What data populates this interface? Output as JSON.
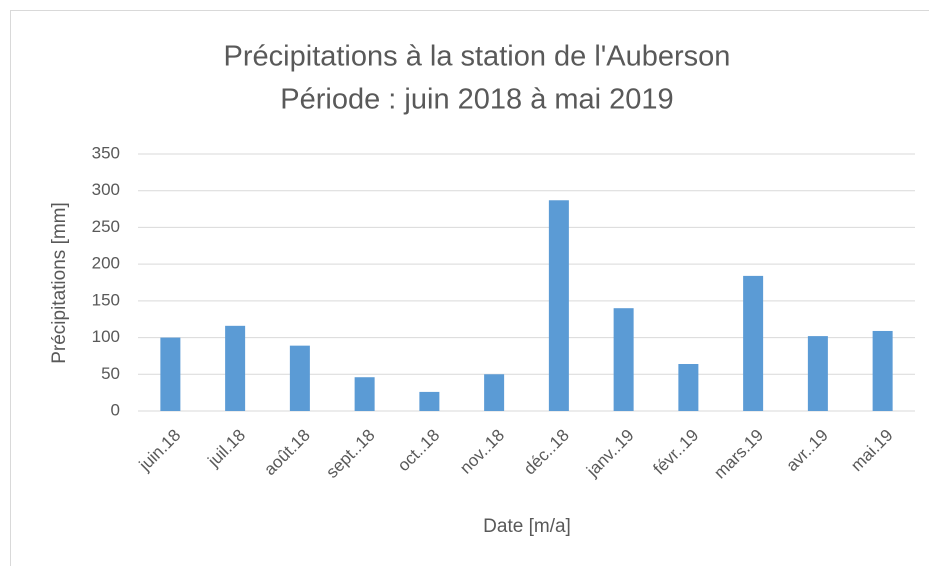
{
  "chart_data": {
    "type": "bar",
    "title": "Précipitations à la station de l'Auberson",
    "subtitle": "Période : juin 2018 à mai 2019",
    "x_label": "Date [m/a]",
    "y_label": "Précipitations [mm]",
    "categories": [
      "juin.18",
      "juil.18",
      "août.18",
      "sept..18",
      "oct..18",
      "nov..18",
      "déc..18",
      "janv..19",
      "févr..19",
      "mars.19",
      "avr..19",
      "mai.19"
    ],
    "values": [
      100,
      116,
      89,
      46,
      26,
      50,
      287,
      140,
      64,
      184,
      102,
      109
    ],
    "color": "#5b9bd5",
    "ylim": [
      0,
      350
    ],
    "yticks": [
      0,
      50,
      100,
      150,
      200,
      250,
      300,
      350
    ],
    "grid": true
  }
}
